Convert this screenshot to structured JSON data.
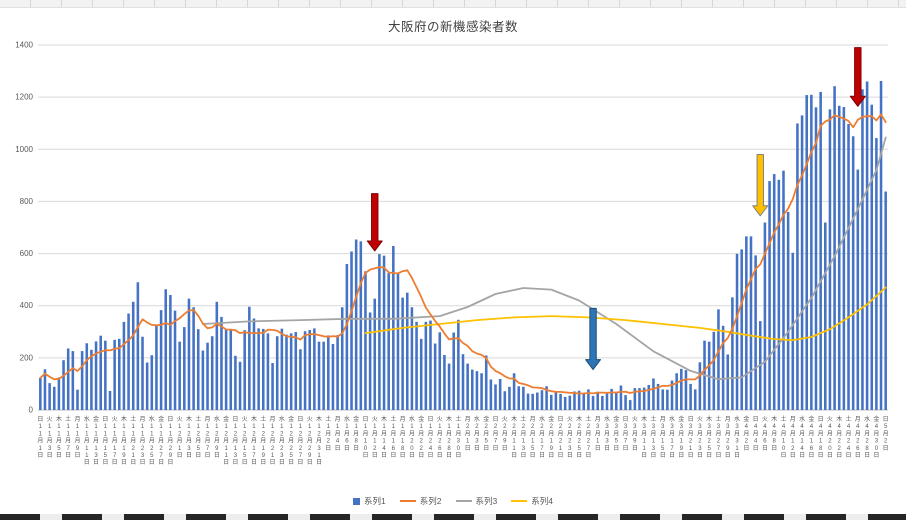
{
  "chart_data": {
    "type": "bar",
    "title": "大阪府の新機感染者数",
    "xlabel": "",
    "ylabel": "",
    "ylim": [
      0,
      1400
    ],
    "ytick_step": 200,
    "grid": "horizontal",
    "legend_position": "bottom-center",
    "start_date": {
      "year": 2020,
      "month": 11,
      "day": 1
    },
    "label_step_days": 2,
    "dow_chars": [
      "日",
      "月",
      "火",
      "水",
      "木",
      "金",
      "土"
    ],
    "month_suffix": "月",
    "day_suffix": "日",
    "series": [
      {
        "name": "系列1",
        "type": "bar",
        "color": "#4472C4",
        "values": [
          123,
          156,
          103,
          89,
          125,
          191,
          236,
          226,
          78,
          226,
          256,
          231,
          263,
          285,
          266,
          73,
          269,
          273,
          338,
          370,
          415,
          490,
          281,
          182,
          210,
          326,
          383,
          463,
          441,
          381,
          262,
          318,
          427,
          394,
          310,
          228,
          258,
          283,
          415,
          357,
          310,
          308,
          208,
          185,
          306,
          396,
          351,
          313,
          311,
          294,
          180,
          283,
          312,
          289,
          294,
          299,
          233,
          302,
          307,
          313,
          262,
          262,
          286,
          253,
          287,
          394,
          560,
          608,
          654,
          647,
          532,
          374,
          427,
          598,
          592,
          525,
          629,
          525,
          431,
          450,
          394,
          338,
          273,
          338,
          343,
          255,
          298,
          211,
          178,
          297,
          346,
          214,
          178,
          155,
          149,
          141,
          209,
          117,
          98,
          119,
          72,
          89,
          141,
          91,
          89,
          63,
          62,
          67,
          76,
          91,
          58,
          69,
          62,
          50,
          55,
          71,
          74,
          64,
          79,
          54,
          70,
          54,
          67,
          81,
          66,
          94,
          57,
          38,
          84,
          84,
          86,
          96,
          121,
          100,
          79,
          78,
          113,
          141,
          158,
          153,
          100,
          79,
          183,
          266,
          262,
          300,
          386,
          323,
          213,
          432,
          599,
          616,
          666,
          666,
          593,
          341,
          719,
          878,
          905,
          883,
          918,
          760,
          603,
          1099,
          1130,
          1208,
          1209,
          1161,
          1220,
          719,
          1153,
          1242,
          1167,
          1162,
          1097,
          1050,
          922,
          1230,
          1260,
          1171,
          1043,
          1262,
          838
        ]
      },
      {
        "name": "系列2",
        "type": "line",
        "color": "#ED7D31",
        "derive": "moving_average",
        "window_days": 7
      },
      {
        "name": "系列3",
        "type": "line",
        "color": "#A5A5A5",
        "points": [
          [
            35,
            330
          ],
          [
            45,
            340
          ],
          [
            56,
            345
          ],
          [
            66,
            350
          ],
          [
            76,
            350
          ],
          [
            86,
            360
          ],
          [
            92,
            395
          ],
          [
            98,
            445
          ],
          [
            104,
            468
          ],
          [
            110,
            462
          ],
          [
            116,
            420
          ],
          [
            124,
            330
          ],
          [
            132,
            225
          ],
          [
            140,
            150
          ],
          [
            146,
            118
          ],
          [
            151,
            125
          ],
          [
            156,
            185
          ],
          [
            161,
            300
          ],
          [
            166,
            430
          ],
          [
            171,
            590
          ],
          [
            176,
            770
          ],
          [
            180,
            920
          ],
          [
            182,
            1045
          ]
        ]
      },
      {
        "name": "系列4",
        "type": "line",
        "color": "#FFC000",
        "points": [
          [
            70,
            295
          ],
          [
            78,
            315
          ],
          [
            86,
            330
          ],
          [
            94,
            345
          ],
          [
            102,
            355
          ],
          [
            110,
            360
          ],
          [
            118,
            355
          ],
          [
            126,
            345
          ],
          [
            134,
            330
          ],
          [
            142,
            315
          ],
          [
            148,
            300
          ],
          [
            153,
            285
          ],
          [
            158,
            272
          ],
          [
            162,
            268
          ],
          [
            166,
            280
          ],
          [
            170,
            310
          ],
          [
            174,
            355
          ],
          [
            178,
            405
          ],
          [
            182,
            470
          ]
        ]
      }
    ],
    "annotations": [
      {
        "name": "red-arrow-january-peak",
        "shape": "down-arrow",
        "color": "#C00000",
        "outline": "#7F0000",
        "day": 72,
        "value_top": 830,
        "value_tip": 610
      },
      {
        "name": "blue-arrow-march-trough",
        "shape": "down-arrow",
        "color": "#2E75B6",
        "outline": "#1F4E79",
        "day": 119,
        "value_top": 390,
        "value_tip": 155
      },
      {
        "name": "yellow-arrow-april-rise",
        "shape": "down-arrow",
        "color": "#FFC000",
        "outline": "#808080",
        "day": 155,
        "value_top": 980,
        "value_tip": 745
      },
      {
        "name": "red-arrow-april-peak",
        "shape": "down-arrow",
        "color": "#C00000",
        "outline": "#7F0000",
        "day": 176,
        "value_top": 1390,
        "value_tip": 1165
      }
    ],
    "legend": [
      {
        "label": "系列1",
        "marker": "square",
        "color": "#4472C4"
      },
      {
        "label": "系列2",
        "marker": "line",
        "color": "#ED7D31"
      },
      {
        "label": "系列3",
        "marker": "line",
        "color": "#A5A5A5"
      },
      {
        "label": "系列4",
        "marker": "line",
        "color": "#FFC000"
      }
    ],
    "axis_text_color": "#595959",
    "gridline_color": "#D9D9D9"
  }
}
